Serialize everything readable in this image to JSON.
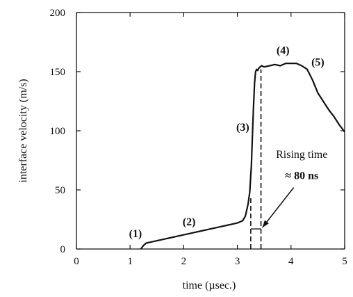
{
  "chart_data": {
    "type": "line",
    "xlabel": "time (µsec.)",
    "ylabel": "interface velocity (m/s)",
    "xlim": [
      0,
      5
    ],
    "ylim": [
      0,
      200
    ],
    "xticks": [
      0,
      1,
      2,
      3,
      4,
      5
    ],
    "yticks": [
      0,
      50,
      100,
      150,
      200
    ],
    "grid": false,
    "legend": "none",
    "series": [
      {
        "x": [
          1.2,
          1.25,
          1.3,
          1.4,
          1.5,
          1.6,
          1.7,
          1.8,
          1.9,
          2.0,
          2.1,
          2.2,
          2.3,
          2.4,
          2.5,
          2.6,
          2.7,
          2.8,
          2.9,
          3.0,
          3.1,
          3.15,
          3.2,
          3.23,
          3.26,
          3.28,
          3.3,
          3.32,
          3.34,
          3.36,
          3.38,
          3.4,
          3.45,
          3.5,
          3.6,
          3.7,
          3.8,
          3.9,
          4.0,
          4.1,
          4.2,
          4.3,
          4.4,
          4.5,
          4.6,
          4.7,
          4.8,
          4.9,
          5.0
        ],
        "y": [
          0,
          3,
          5,
          6,
          7,
          8,
          9,
          10,
          11,
          12,
          13,
          14,
          15,
          16,
          17,
          18,
          19,
          20,
          21,
          22,
          24,
          28,
          38,
          48,
          70,
          95,
          120,
          140,
          150,
          152,
          151,
          153,
          155,
          154,
          155,
          156,
          155,
          157,
          157,
          157,
          155,
          152,
          143,
          132,
          125,
          118,
          112,
          105,
          99
        ]
      }
    ],
    "annotations": [
      {
        "text": "(1)",
        "x": 1.1,
        "y": 10
      },
      {
        "text": "(2)",
        "x": 2.1,
        "y": 20
      },
      {
        "text": "(3)",
        "x": 3.1,
        "y": 100
      },
      {
        "text": "(4)",
        "x": 3.85,
        "y": 165
      },
      {
        "text": "(5)",
        "x": 4.5,
        "y": 155
      },
      {
        "text": "Rising time",
        "x": 4.2,
        "y": 77
      },
      {
        "text": "≈ 80 ns",
        "x": 4.2,
        "y": 59
      }
    ],
    "rising_time_markers": {
      "x1": 3.25,
      "x2": 3.44,
      "y": 17
    }
  }
}
